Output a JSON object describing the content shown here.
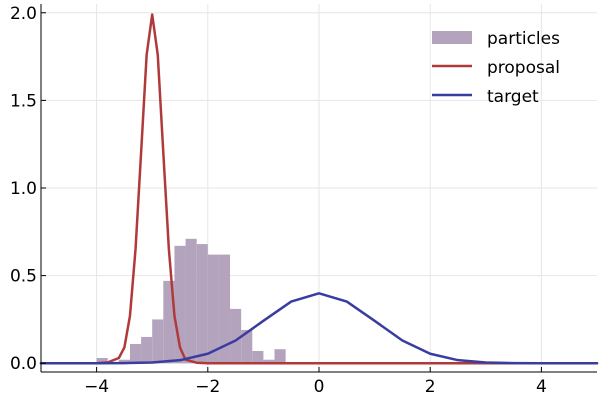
{
  "chart_data": {
    "type": "bar",
    "title": "",
    "xlabel": "",
    "ylabel": "",
    "xlim": [
      -5,
      5
    ],
    "ylim": [
      -0.05,
      2.05
    ],
    "x_ticks": [
      -4,
      -2,
      0,
      2,
      4
    ],
    "x_tick_labels": [
      "−4",
      "−2",
      "0",
      "2",
      "4"
    ],
    "y_ticks": [
      0.0,
      0.5,
      1.0,
      1.5,
      2.0
    ],
    "y_tick_labels": [
      "0.0",
      "0.5",
      "1.0",
      "1.5",
      "2.0"
    ],
    "grid": true,
    "legend_position": "top-right",
    "histogram": {
      "name": "particles",
      "color": "#b3a3bd",
      "bin_edges": [
        -4.0,
        -3.8,
        -3.6,
        -3.4,
        -3.2,
        -3.0,
        -2.8,
        -2.6,
        -2.4,
        -2.2,
        -2.0,
        -1.8,
        -1.6,
        -1.4,
        -1.2,
        -1.0,
        -0.8,
        -0.6
      ],
      "values": [
        0.03,
        0.0,
        0.02,
        0.11,
        0.15,
        0.25,
        0.47,
        0.67,
        0.71,
        0.68,
        0.62,
        0.62,
        0.31,
        0.19,
        0.07,
        0.02,
        0.08
      ]
    },
    "series": [
      {
        "name": "proposal",
        "color": "#b03a3a",
        "type": "line",
        "x": [
          -5.0,
          -4.0,
          -3.8,
          -3.6,
          -3.5,
          -3.4,
          -3.3,
          -3.2,
          -3.1,
          -3.0,
          -2.9,
          -2.8,
          -2.7,
          -2.6,
          -2.5,
          -2.4,
          -2.2,
          -2.0,
          0.0,
          2.0,
          4.0,
          5.0
        ],
        "y": [
          0.0,
          0.0,
          0.005,
          0.03,
          0.09,
          0.27,
          0.65,
          1.2,
          1.76,
          1.99,
          1.76,
          1.2,
          0.65,
          0.27,
          0.09,
          0.02,
          0.003,
          0.0,
          0.0,
          0.0,
          0.0,
          0.0
        ]
      },
      {
        "name": "target",
        "color": "#3a3da0",
        "type": "line",
        "x": [
          -5.0,
          -4.5,
          -4.0,
          -3.5,
          -3.0,
          -2.5,
          -2.0,
          -1.5,
          -1.0,
          -0.5,
          0.0,
          0.5,
          1.0,
          1.5,
          2.0,
          2.5,
          3.0,
          3.5,
          4.0,
          4.5,
          5.0
        ],
        "y": [
          0.0,
          0.0,
          0.0001,
          0.0009,
          0.0044,
          0.0175,
          0.054,
          0.1295,
          0.242,
          0.352,
          0.399,
          0.352,
          0.242,
          0.1295,
          0.054,
          0.0175,
          0.0044,
          0.0009,
          0.0001,
          0.0,
          0.0
        ]
      }
    ]
  }
}
